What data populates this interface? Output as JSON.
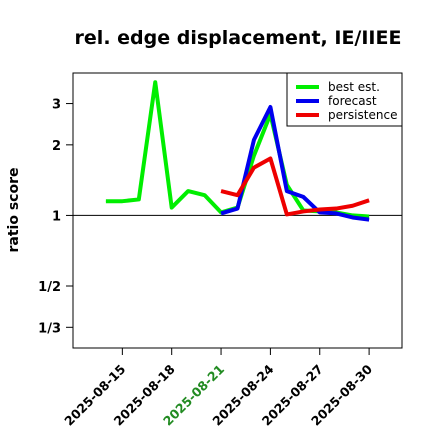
{
  "chart_data": {
    "type": "line",
    "title": "rel. edge displacement, IE/IIEE",
    "xlabel": "",
    "ylabel": "ratio score",
    "y_scale": "log",
    "ylim": [
      0.272,
      4.05
    ],
    "y_ticks": [
      {
        "value": 3,
        "label": "3"
      },
      {
        "value": 2,
        "label": "2"
      },
      {
        "value": 1,
        "label": "1"
      },
      {
        "value": 0.5,
        "label": "1/2"
      },
      {
        "value": 0.3333,
        "label": "1/3"
      }
    ],
    "xlim": [
      "2025-08-12",
      "2025-09-01"
    ],
    "x_ticks": [
      {
        "value": "2025-08-15",
        "label": "2025-08-15",
        "color": "#000000"
      },
      {
        "value": "2025-08-18",
        "label": "2025-08-18",
        "color": "#000000"
      },
      {
        "value": "2025-08-21",
        "label": "2025-08-21",
        "color": "#228B22"
      },
      {
        "value": "2025-08-24",
        "label": "2025-08-24",
        "color": "#000000"
      },
      {
        "value": "2025-08-27",
        "label": "2025-08-27",
        "color": "#000000"
      },
      {
        "value": "2025-08-30",
        "label": "2025-08-30",
        "color": "#000000"
      }
    ],
    "reference_line": 1,
    "legend": {
      "position": "top-right"
    },
    "series": [
      {
        "name": "best est.",
        "color": "#00EE00",
        "points": [
          [
            "2025-08-14",
            1.15
          ],
          [
            "2025-08-15",
            1.15
          ],
          [
            "2025-08-16",
            1.17
          ],
          [
            "2025-08-17",
            3.7
          ],
          [
            "2025-08-18",
            1.08
          ],
          [
            "2025-08-19",
            1.27
          ],
          [
            "2025-08-20",
            1.22
          ],
          [
            "2025-08-21",
            1.03
          ],
          [
            "2025-08-22",
            1.08
          ],
          [
            "2025-08-23",
            1.8
          ],
          [
            "2025-08-24",
            2.7
          ],
          [
            "2025-08-25",
            1.35
          ],
          [
            "2025-08-26",
            1.05
          ],
          [
            "2025-08-27",
            1.04
          ],
          [
            "2025-08-28",
            1.03
          ],
          [
            "2025-08-29",
            1.0
          ],
          [
            "2025-08-30",
            0.99
          ]
        ]
      },
      {
        "name": "forecast",
        "color": "#0000EE",
        "points": [
          [
            "2025-08-21",
            1.02
          ],
          [
            "2025-08-22",
            1.07
          ],
          [
            "2025-08-23",
            2.1
          ],
          [
            "2025-08-24",
            2.9
          ],
          [
            "2025-08-25",
            1.27
          ],
          [
            "2025-08-26",
            1.2
          ],
          [
            "2025-08-27",
            1.03
          ],
          [
            "2025-08-28",
            1.02
          ],
          [
            "2025-08-29",
            0.98
          ],
          [
            "2025-08-30",
            0.96
          ]
        ]
      },
      {
        "name": "persistence",
        "color": "#EE0000",
        "points": [
          [
            "2025-08-21",
            1.27
          ],
          [
            "2025-08-22",
            1.22
          ],
          [
            "2025-08-23",
            1.6
          ],
          [
            "2025-08-24",
            1.75
          ],
          [
            "2025-08-25",
            1.01
          ],
          [
            "2025-08-26",
            1.04
          ],
          [
            "2025-08-27",
            1.06
          ],
          [
            "2025-08-28",
            1.07
          ],
          [
            "2025-08-29",
            1.1
          ],
          [
            "2025-08-30",
            1.16
          ]
        ]
      }
    ]
  }
}
